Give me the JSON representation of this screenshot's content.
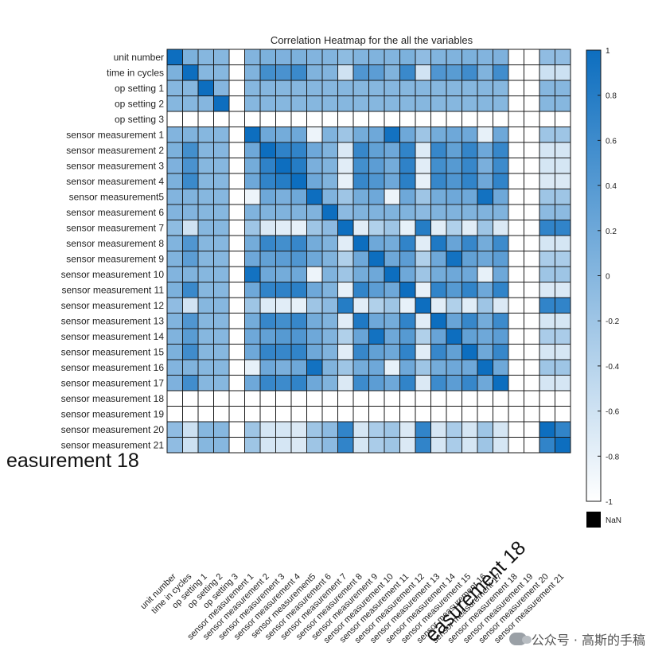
{
  "chart_data": {
    "type": "heatmap",
    "title": "Correlation Heatmap for the all the variables",
    "labels": [
      "unit number",
      "time in cycles",
      "op setting 1",
      "op setting 2",
      "op setting 3",
      "sensor measurement 1",
      "sensor measurement 2",
      "sensor measurement 3",
      "sensor measurement 4",
      "sensor measurement5",
      "sensor measurement 6",
      "sensor measurement 7",
      "sensor measurement 8",
      "sensor measurement 9",
      "sensor measurement 10",
      "sensor measurement 11",
      "sensor measurement 12",
      "sensor measurement 13",
      "sensor measurement 14",
      "sensor measurement 15",
      "sensor measurement 16",
      "sensor measurement 17",
      "sensor measurement 18",
      "sensor measurement 19",
      "sensor measurement 20",
      "sensor measurement 21"
    ],
    "values": [
      [
        1,
        0.08,
        0.0,
        0.0,
        null,
        0.03,
        0.08,
        0.07,
        0.08,
        0.03,
        0.03,
        -0.07,
        0.04,
        0.05,
        0.03,
        0.08,
        -0.08,
        0.04,
        0.05,
        0.08,
        0.03,
        0.07,
        null,
        null,
        -0.08,
        -0.08
      ],
      [
        0.08,
        1,
        0.0,
        0.0,
        null,
        0.05,
        0.55,
        0.5,
        0.62,
        0.05,
        0.03,
        -0.6,
        0.45,
        0.35,
        0.05,
        0.63,
        -0.62,
        0.45,
        0.37,
        0.58,
        0.05,
        0.57,
        null,
        null,
        -0.58,
        -0.58
      ],
      [
        0.0,
        0.0,
        1,
        0.01,
        null,
        0.0,
        0.01,
        0.0,
        0.0,
        0.0,
        0.0,
        -0.0,
        0.0,
        0.0,
        0.0,
        0.0,
        -0.0,
        0.0,
        0.0,
        0.0,
        0.0,
        0.0,
        null,
        null,
        -0.0,
        -0.0
      ],
      [
        0.0,
        0.0,
        0.01,
        1,
        null,
        0.0,
        0.01,
        0.0,
        0.0,
        0.0,
        0.0,
        -0.0,
        0.0,
        0.0,
        0.0,
        0.0,
        -0.0,
        0.0,
        0.0,
        0.0,
        0.0,
        0.0,
        null,
        null,
        -0.0,
        -0.0
      ],
      [
        null,
        null,
        null,
        null,
        null,
        null,
        null,
        null,
        null,
        null,
        null,
        null,
        null,
        null,
        null,
        null,
        null,
        null,
        null,
        null,
        null,
        null,
        null,
        null,
        null,
        null
      ],
      [
        0.03,
        0.05,
        0.0,
        0.0,
        null,
        1,
        0.2,
        0.15,
        0.2,
        -0.85,
        0.05,
        -0.2,
        0.15,
        0.2,
        0.95,
        0.2,
        -0.2,
        0.15,
        0.2,
        0.2,
        -0.8,
        0.2,
        null,
        null,
        -0.2,
        -0.2
      ],
      [
        0.08,
        0.55,
        0.01,
        0.01,
        null,
        0.2,
        1,
        0.72,
        0.7,
        0.2,
        0.05,
        -0.7,
        0.65,
        0.3,
        0.2,
        0.7,
        -0.72,
        0.65,
        0.3,
        0.68,
        0.2,
        0.65,
        null,
        null,
        -0.65,
        -0.65
      ],
      [
        0.07,
        0.5,
        0.0,
        0.0,
        null,
        0.15,
        0.72,
        1,
        0.8,
        0.1,
        0.05,
        -0.75,
        0.55,
        0.35,
        0.15,
        0.72,
        -0.75,
        0.55,
        0.4,
        0.65,
        0.1,
        0.6,
        null,
        null,
        -0.65,
        -0.65
      ],
      [
        0.08,
        0.62,
        0.0,
        0.0,
        null,
        0.2,
        0.7,
        0.8,
        1,
        0.2,
        0.05,
        -0.8,
        0.65,
        0.45,
        0.2,
        0.75,
        -0.8,
        0.65,
        0.45,
        0.7,
        0.2,
        0.7,
        null,
        null,
        -0.7,
        -0.7
      ],
      [
        0.03,
        0.05,
        0.0,
        0.0,
        null,
        -0.85,
        0.2,
        0.1,
        0.2,
        1,
        0.05,
        -0.2,
        0.15,
        0.2,
        -0.85,
        0.2,
        -0.2,
        0.15,
        0.2,
        0.2,
        0.95,
        0.2,
        null,
        null,
        -0.2,
        -0.2
      ],
      [
        0.03,
        0.03,
        0.0,
        0.0,
        null,
        0.05,
        0.05,
        0.05,
        0.05,
        0.05,
        1,
        -0.05,
        0.05,
        0.05,
        0.05,
        0.05,
        -0.05,
        0.05,
        0.05,
        0.05,
        0.05,
        0.05,
        null,
        null,
        -0.05,
        -0.05
      ],
      [
        -0.07,
        -0.6,
        0.0,
        0.0,
        null,
        -0.2,
        -0.7,
        -0.75,
        -0.8,
        -0.2,
        -0.05,
        1,
        -0.75,
        -0.35,
        -0.2,
        -0.8,
        0.8,
        -0.75,
        -0.35,
        -0.75,
        -0.2,
        -0.7,
        null,
        null,
        0.7,
        0.7
      ],
      [
        0.04,
        0.45,
        0.0,
        0.0,
        null,
        0.15,
        0.65,
        0.55,
        0.65,
        0.15,
        0.05,
        -0.75,
        1,
        0.2,
        0.15,
        0.7,
        -0.75,
        0.85,
        0.25,
        0.65,
        0.15,
        0.6,
        null,
        null,
        -0.65,
        -0.65
      ],
      [
        0.05,
        0.35,
        0.0,
        0.0,
        null,
        0.2,
        0.3,
        0.35,
        0.45,
        0.2,
        0.05,
        -0.35,
        0.2,
        1,
        0.2,
        0.35,
        -0.35,
        0.2,
        0.95,
        0.3,
        0.2,
        0.35,
        null,
        null,
        -0.3,
        -0.3
      ],
      [
        0.03,
        0.05,
        0.0,
        0.0,
        null,
        0.95,
        0.2,
        0.15,
        0.2,
        -0.85,
        0.05,
        -0.2,
        0.15,
        0.2,
        1,
        0.2,
        -0.2,
        0.15,
        0.2,
        0.2,
        -0.8,
        0.2,
        null,
        null,
        -0.2,
        -0.2
      ],
      [
        0.08,
        0.63,
        0.0,
        0.0,
        null,
        0.2,
        0.7,
        0.72,
        0.75,
        0.2,
        0.05,
        -0.8,
        0.7,
        0.35,
        0.2,
        1,
        -0.8,
        0.7,
        0.4,
        0.7,
        0.2,
        0.7,
        null,
        null,
        -0.7,
        -0.7
      ],
      [
        -0.08,
        -0.62,
        0.0,
        0.0,
        null,
        -0.2,
        -0.72,
        -0.75,
        -0.8,
        -0.2,
        -0.05,
        0.8,
        -0.75,
        -0.35,
        -0.2,
        -0.8,
        1,
        -0.75,
        -0.35,
        -0.75,
        -0.2,
        -0.7,
        null,
        null,
        0.7,
        0.7
      ],
      [
        0.04,
        0.45,
        0.0,
        0.0,
        null,
        0.15,
        0.65,
        0.55,
        0.65,
        0.15,
        0.05,
        -0.75,
        0.85,
        0.2,
        0.15,
        0.7,
        -0.75,
        1,
        0.25,
        0.65,
        0.15,
        0.6,
        null,
        null,
        -0.65,
        -0.65
      ],
      [
        0.05,
        0.37,
        0.0,
        0.0,
        null,
        0.2,
        0.3,
        0.4,
        0.45,
        0.2,
        0.05,
        -0.35,
        0.25,
        0.95,
        0.2,
        0.4,
        -0.35,
        0.25,
        1,
        0.3,
        0.2,
        0.35,
        null,
        null,
        -0.3,
        -0.3
      ],
      [
        0.08,
        0.58,
        0.0,
        0.0,
        null,
        0.2,
        0.68,
        0.65,
        0.7,
        0.2,
        0.05,
        -0.75,
        0.65,
        0.3,
        0.2,
        0.7,
        -0.75,
        0.65,
        0.3,
        1,
        0.2,
        0.65,
        null,
        null,
        -0.65,
        -0.65
      ],
      [
        0.03,
        0.05,
        0.0,
        0.0,
        null,
        -0.8,
        0.2,
        0.1,
        0.2,
        0.95,
        0.05,
        -0.2,
        0.15,
        0.2,
        -0.8,
        0.2,
        -0.2,
        0.15,
        0.2,
        0.2,
        1,
        0.2,
        null,
        null,
        -0.2,
        -0.2
      ],
      [
        0.07,
        0.57,
        0.0,
        0.0,
        null,
        0.2,
        0.65,
        0.6,
        0.7,
        0.2,
        0.05,
        -0.7,
        0.6,
        0.35,
        0.2,
        0.7,
        -0.7,
        0.6,
        0.35,
        0.65,
        0.2,
        1,
        null,
        null,
        -0.65,
        -0.65
      ],
      [
        null,
        null,
        null,
        null,
        null,
        null,
        null,
        null,
        null,
        null,
        null,
        null,
        null,
        null,
        null,
        null,
        null,
        null,
        null,
        null,
        null,
        null,
        null,
        null,
        null,
        null
      ],
      [
        null,
        null,
        null,
        null,
        null,
        null,
        null,
        null,
        null,
        null,
        null,
        null,
        null,
        null,
        null,
        null,
        null,
        null,
        null,
        null,
        null,
        null,
        null,
        null,
        null,
        null
      ],
      [
        -0.08,
        -0.58,
        0.0,
        0.0,
        null,
        -0.2,
        -0.65,
        -0.65,
        -0.7,
        -0.2,
        -0.05,
        0.7,
        -0.65,
        -0.3,
        -0.2,
        -0.7,
        0.7,
        -0.65,
        -0.3,
        -0.65,
        -0.2,
        -0.65,
        null,
        null,
        1,
        0.7
      ],
      [
        -0.08,
        -0.58,
        0.0,
        0.0,
        null,
        -0.2,
        -0.65,
        -0.65,
        -0.7,
        -0.2,
        -0.05,
        0.7,
        -0.65,
        -0.3,
        -0.2,
        -0.7,
        0.7,
        -0.65,
        -0.3,
        -0.65,
        -0.2,
        -0.65,
        null,
        null,
        0.7,
        1
      ]
    ],
    "colorbar": {
      "range": [
        -1,
        1
      ],
      "ticks": [
        "1",
        "0.8",
        "0.6",
        "0.4",
        "0.2",
        "0",
        "-0.2",
        "-0.4",
        "-0.6",
        "-0.8",
        "-1"
      ],
      "nan_label": "NaN",
      "color_low": "#ffffff",
      "color_high": "#0d6ebf",
      "nan_color": "#000000"
    },
    "grid": true
  },
  "overlay_text": "easurement  18",
  "watermark": "公众号 · 高斯的手稿"
}
